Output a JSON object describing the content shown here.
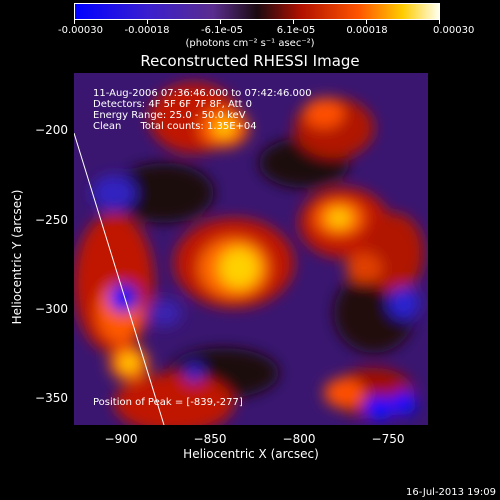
{
  "colorbar": {
    "ticks": [
      "-0.00030",
      "-0.00018",
      "-6.1e-05",
      "6.1e-05",
      "0.00018",
      "0.00030"
    ],
    "units": "(photons cm⁻² s⁻¹ asec⁻²)",
    "min": -0.0003,
    "max": 0.0003
  },
  "title": "Reconstructed RHESSI Image",
  "annotation": {
    "time": "11-Aug-2006 07:36:46.000 to 07:42:46.000",
    "detectors": "Detectors: 4F 5F 6F 7F 8F, Att 0",
    "energy": "Energy Range: 25.0 - 50.0 keV",
    "clean": "Clean      Total counts: 1.35E+04"
  },
  "peak": "Position of Peak = [-839,-277]",
  "chart_data": {
    "type": "heatmap",
    "xlabel": "Heliocentric X (arcsec)",
    "ylabel": "Heliocentric Y (arcsec)",
    "xlim": [
      -930,
      -730
    ],
    "ylim": [
      -362,
      -164
    ],
    "xticks": [
      -900,
      -850,
      -800,
      -750
    ],
    "yticks": [
      -200,
      -250,
      -300,
      -350
    ],
    "xtick_labels": [
      "−900",
      "−850",
      "−800",
      "−750"
    ],
    "ytick_labels": [
      "−200",
      "−250",
      "−300",
      "−350"
    ],
    "peak_position": [
      -839,
      -277
    ],
    "colormap": "blue-purple-red-yellow-white",
    "limb_curve": true
  },
  "footer": "16-Jul-2013 19:09",
  "colors": {
    "background": "#000000",
    "text": "#ffffff",
    "limb": "#ffffff"
  }
}
